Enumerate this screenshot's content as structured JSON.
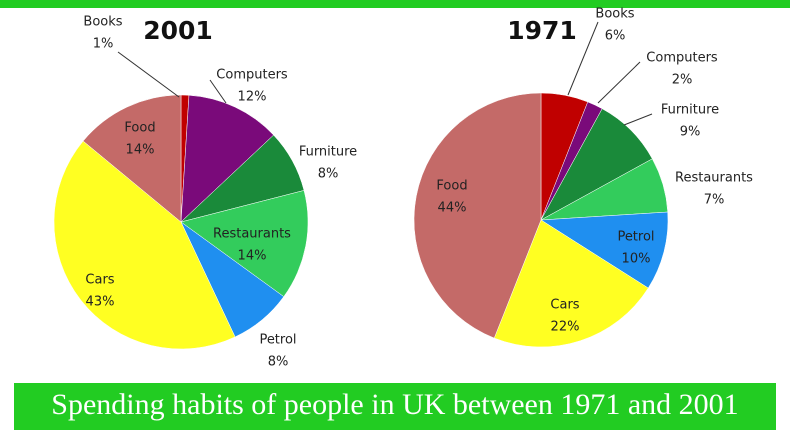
{
  "chart_data": [
    {
      "type": "pie",
      "title": "2001",
      "categories": [
        "Books",
        "Computers",
        "Furniture",
        "Restaurants",
        "Petrol",
        "Cars",
        "Food"
      ],
      "values": [
        1,
        12,
        8,
        14,
        8,
        43,
        14
      ],
      "value_labels": [
        "1%",
        "12%",
        "8%",
        "14%",
        "8%",
        "43%",
        "14%"
      ],
      "colors": [
        "#c00000",
        "#7a0a7a",
        "#1a8a3a",
        "#33cc5c",
        "#1f8ff0",
        "#ffff22",
        "#c46a68"
      ]
    },
    {
      "type": "pie",
      "title": "1971",
      "categories": [
        "Books",
        "Computers",
        "Furniture",
        "Restaurants",
        "Petrol",
        "Cars",
        "Food"
      ],
      "values": [
        6,
        2,
        9,
        7,
        10,
        22,
        44
      ],
      "value_labels": [
        "6%",
        "2%",
        "9%",
        "7%",
        "10%",
        "22%",
        "44%"
      ],
      "colors": [
        "#c00000",
        "#7a0a7a",
        "#1a8a3a",
        "#33cc5c",
        "#1f8ff0",
        "#ffff22",
        "#c46a68"
      ]
    }
  ],
  "caption": "Spending habits of people in UK between 1971 and 2001"
}
